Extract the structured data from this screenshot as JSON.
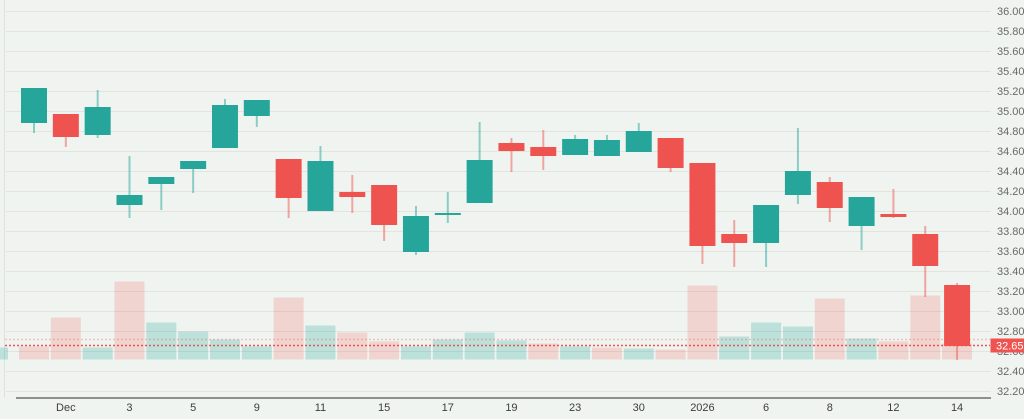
{
  "chart_data": {
    "type": "candlestick",
    "title": "",
    "background": "#f0f4f1",
    "y_axis": {
      "min": 32.2,
      "max": 36.0,
      "step": 0.2,
      "ticks": [
        "36.00",
        "35.80",
        "35.60",
        "35.40",
        "35.20",
        "35.00",
        "34.80",
        "34.60",
        "34.40",
        "34.20",
        "34.00",
        "33.80",
        "33.60",
        "33.40",
        "33.20",
        "33.00",
        "32.80",
        "32.60",
        "32.40",
        "32.20"
      ],
      "side": "right"
    },
    "x_axis": {
      "tick_labels": [
        {
          "index": 1,
          "label": "Dec"
        },
        {
          "index": 3,
          "label": "3"
        },
        {
          "index": 5,
          "label": "5"
        },
        {
          "index": 7,
          "label": "9"
        },
        {
          "index": 9,
          "label": "11"
        },
        {
          "index": 11,
          "label": "15"
        },
        {
          "index": 13,
          "label": "17"
        },
        {
          "index": 15,
          "label": "19"
        },
        {
          "index": 17,
          "label": "23"
        },
        {
          "index": 19,
          "label": "30"
        },
        {
          "index": 21,
          "label": "2026"
        },
        {
          "index": 23,
          "label": "6"
        },
        {
          "index": 25,
          "label": "8"
        },
        {
          "index": 27,
          "label": "12"
        },
        {
          "index": 29,
          "label": "14"
        }
      ]
    },
    "candles": [
      {
        "o": 34.88,
        "h": 35.23,
        "l": 34.78,
        "c": 35.23,
        "vol": 13,
        "vol_dir": "down"
      },
      {
        "o": 34.97,
        "h": 34.97,
        "l": 34.64,
        "c": 34.74,
        "vol": 42,
        "vol_dir": "down"
      },
      {
        "o": 34.76,
        "h": 35.21,
        "l": 34.73,
        "c": 35.04,
        "vol": 12,
        "vol_dir": "up"
      },
      {
        "o": 34.06,
        "h": 34.55,
        "l": 33.93,
        "c": 34.16,
        "vol": 78,
        "vol_dir": "down"
      },
      {
        "o": 34.27,
        "h": 34.34,
        "l": 34.01,
        "c": 34.34,
        "vol": 37,
        "vol_dir": "up"
      },
      {
        "o": 34.42,
        "h": 34.5,
        "l": 34.18,
        "c": 34.5,
        "vol": 28,
        "vol_dir": "up"
      },
      {
        "o": 34.63,
        "h": 35.12,
        "l": 34.63,
        "c": 35.06,
        "vol": 20,
        "vol_dir": "up"
      },
      {
        "o": 34.95,
        "h": 35.11,
        "l": 34.84,
        "c": 35.11,
        "vol": 13,
        "vol_dir": "up"
      },
      {
        "o": 34.52,
        "h": 34.52,
        "l": 33.93,
        "c": 34.13,
        "vol": 62,
        "vol_dir": "down"
      },
      {
        "o": 34.0,
        "h": 34.65,
        "l": 34.0,
        "c": 34.5,
        "vol": 34,
        "vol_dir": "up"
      },
      {
        "o": 34.19,
        "h": 34.36,
        "l": 33.98,
        "c": 34.14,
        "vol": 27,
        "vol_dir": "down"
      },
      {
        "o": 34.26,
        "h": 34.26,
        "l": 33.7,
        "c": 33.86,
        "vol": 18,
        "vol_dir": "down"
      },
      {
        "o": 33.59,
        "h": 34.05,
        "l": 33.56,
        "c": 33.95,
        "vol": 13,
        "vol_dir": "up"
      },
      {
        "o": 33.96,
        "h": 34.19,
        "l": 33.88,
        "c": 33.98,
        "vol": 20,
        "vol_dir": "up"
      },
      {
        "o": 34.08,
        "h": 34.89,
        "l": 34.08,
        "c": 34.51,
        "vol": 27,
        "vol_dir": "up"
      },
      {
        "o": 34.68,
        "h": 34.73,
        "l": 34.39,
        "c": 34.6,
        "vol": 19,
        "vol_dir": "up"
      },
      {
        "o": 34.64,
        "h": 34.81,
        "l": 34.41,
        "c": 34.55,
        "vol": 16,
        "vol_dir": "down"
      },
      {
        "o": 34.56,
        "h": 34.76,
        "l": 34.56,
        "c": 34.72,
        "vol": 13,
        "vol_dir": "up"
      },
      {
        "o": 34.55,
        "h": 34.76,
        "l": 34.55,
        "c": 34.71,
        "vol": 12,
        "vol_dir": "down"
      },
      {
        "o": 34.59,
        "h": 34.88,
        "l": 34.59,
        "c": 34.8,
        "vol": 11,
        "vol_dir": "up"
      },
      {
        "o": 34.73,
        "h": 34.73,
        "l": 34.39,
        "c": 34.43,
        "vol": 10,
        "vol_dir": "down"
      },
      {
        "o": 34.48,
        "h": 34.48,
        "l": 33.47,
        "c": 33.65,
        "vol": 74,
        "vol_dir": "down"
      },
      {
        "o": 33.77,
        "h": 33.91,
        "l": 33.44,
        "c": 33.68,
        "vol": 23,
        "vol_dir": "up"
      },
      {
        "o": 33.68,
        "h": 34.06,
        "l": 33.44,
        "c": 34.06,
        "vol": 37,
        "vol_dir": "up"
      },
      {
        "o": 34.16,
        "h": 34.83,
        "l": 34.07,
        "c": 34.4,
        "vol": 33,
        "vol_dir": "up"
      },
      {
        "o": 34.29,
        "h": 34.34,
        "l": 33.89,
        "c": 34.03,
        "vol": 61,
        "vol_dir": "down"
      },
      {
        "o": 33.85,
        "h": 34.14,
        "l": 33.61,
        "c": 34.14,
        "vol": 21,
        "vol_dir": "up"
      },
      {
        "o": 33.97,
        "h": 34.22,
        "l": 33.93,
        "c": 33.94,
        "vol": 18,
        "vol_dir": "down"
      },
      {
        "o": 33.77,
        "h": 33.85,
        "l": 33.14,
        "c": 33.45,
        "vol": 64,
        "vol_dir": "down"
      },
      {
        "o": 33.26,
        "h": 33.28,
        "l": 32.51,
        "c": 32.65,
        "vol": 16,
        "vol_dir": "down"
      }
    ],
    "partial_left_volume": {
      "vol": 12,
      "dir": "up"
    },
    "last_price": {
      "value": 32.65,
      "label": "32.65"
    },
    "prev_close_line": 32.72,
    "legend_position": "none",
    "grid": "horizontal",
    "colors": {
      "up": "#26a69a",
      "down": "#ef5350",
      "wick_up": "rgba(38,166,154,0.5)",
      "wick_down": "rgba(239,83,80,0.5)",
      "vol_up": "rgba(38,166,154,0.26)",
      "vol_down": "rgba(239,83,80,0.2)",
      "grid": "#e6e2de",
      "axis_line": "#8f8f8f",
      "x_label_text": "#3d3d3d",
      "y_label_text": "#696969",
      "last_price_bg": "#ef5350",
      "last_price_text": "#ffffff",
      "background": "#f0f4f1"
    }
  }
}
